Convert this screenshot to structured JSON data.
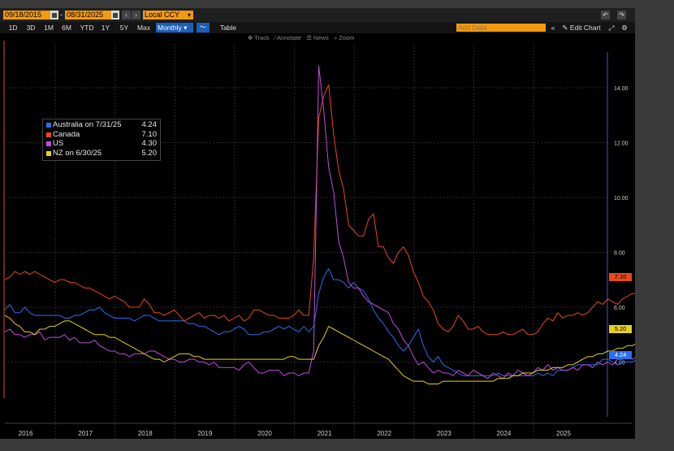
{
  "toolbar": {
    "start_date": "09/18/2015",
    "end_date": "08/31/2025",
    "date_separator": "-",
    "currency": "Local CCY",
    "periods": [
      "1D",
      "3D",
      "1M",
      "6M",
      "YTD",
      "1Y",
      "5Y",
      "Max"
    ],
    "frequency": "Monthly",
    "table_label": "Table",
    "add_data_placeholder": "Add Data",
    "edit_chart_label": "Edit Chart"
  },
  "subbar": {
    "track": "Track",
    "annotate": "Annotate",
    "news": "News",
    "zoom": "Zoom"
  },
  "colors": {
    "Australia": "#2a6ff0",
    "Canada": "#e8491d",
    "US": "#c04de0",
    "NZ": "#e6d21a",
    "orange_ui": "#f29a12"
  },
  "legend": [
    {
      "name": "Australia on 7/31/25",
      "value": "4.24"
    },
    {
      "name": "Canada",
      "value": "7.10"
    },
    {
      "name": "US",
      "value": "4.30"
    },
    {
      "name": "NZ on 6/30/25",
      "value": "5.20"
    }
  ],
  "last_value_tags": [
    "7.10",
    "5.20",
    "4.24"
  ],
  "chart_data": {
    "type": "line",
    "x_start": "2015-09",
    "x_step": "monthly",
    "xlim": [
      "2015-09",
      "2025-08"
    ],
    "x_ticks": [
      "2016",
      "2017",
      "2018",
      "2019",
      "2020",
      "2021",
      "2022",
      "2023",
      "2024",
      "2025"
    ],
    "y_ticks": [
      "4.00",
      "6.00",
      "8.00",
      "10.00",
      "12.00",
      "14.00"
    ],
    "ylim": [
      2.0,
      15.6
    ],
    "grid": true,
    "legend_position": "top-left",
    "series": [
      {
        "name": "Australia",
        "values": [
          5.9,
          6.1,
          5.8,
          5.8,
          6.0,
          5.8,
          5.7,
          5.7,
          5.7,
          5.7,
          5.7,
          5.7,
          5.6,
          5.6,
          5.7,
          5.7,
          5.8,
          5.9,
          5.9,
          6.0,
          5.8,
          5.7,
          5.6,
          5.6,
          5.6,
          5.6,
          5.5,
          5.6,
          5.7,
          5.7,
          5.6,
          5.5,
          5.5,
          5.5,
          5.5,
          5.5,
          5.5,
          5.4,
          5.4,
          5.3,
          5.3,
          5.2,
          5.1,
          5.0,
          5.1,
          5.1,
          5.2,
          5.3,
          5.2,
          5.0,
          5.0,
          5.0,
          5.1,
          5.1,
          5.2,
          5.3,
          5.2,
          5.3,
          5.2,
          5.1,
          5.3,
          5.1,
          5.3,
          6.5,
          7.1,
          7.4,
          7.0,
          7.0,
          6.9,
          6.7,
          6.9,
          6.7,
          6.6,
          6.3,
          5.9,
          5.6,
          5.4,
          5.1,
          4.9,
          4.6,
          4.4,
          4.6,
          4.9,
          5.2,
          4.6,
          4.2,
          4.0,
          4.2,
          3.9,
          3.8,
          3.7,
          3.6,
          3.5,
          3.5,
          3.5,
          3.5,
          3.5,
          3.5,
          3.5,
          3.6,
          3.5,
          3.5,
          3.5,
          3.5,
          3.5,
          3.5,
          3.5,
          3.6,
          3.5,
          3.6,
          3.5,
          3.7,
          3.7,
          3.7,
          3.8,
          3.9,
          3.9,
          3.9,
          3.9,
          3.9,
          4.1,
          4.1,
          4.0,
          3.9,
          4.0,
          4.0,
          4.0,
          4.1,
          4.2,
          4.2,
          4.1,
          4.0,
          4.1,
          4.2,
          4.3,
          4.4,
          4.2,
          4.3,
          4.2,
          4.2,
          4.1,
          4.0,
          4.1,
          4.3,
          4.1,
          4.2,
          4.24
        ]
      },
      {
        "name": "Canada",
        "values": [
          7.0,
          7.1,
          7.3,
          7.2,
          7.3,
          7.2,
          7.3,
          7.2,
          7.1,
          7.0,
          6.9,
          7.0,
          7.0,
          6.9,
          6.9,
          6.8,
          6.7,
          6.7,
          6.6,
          6.5,
          6.4,
          6.3,
          6.4,
          6.3,
          6.2,
          6.0,
          6.0,
          6.0,
          6.3,
          6.1,
          5.8,
          5.8,
          5.7,
          5.8,
          5.9,
          5.7,
          5.5,
          5.6,
          5.7,
          5.8,
          5.6,
          5.7,
          5.7,
          5.6,
          5.7,
          5.5,
          5.6,
          5.7,
          5.5,
          5.6,
          5.9,
          5.9,
          5.8,
          5.7,
          5.7,
          5.6,
          5.6,
          5.6,
          5.7,
          5.9,
          5.7,
          5.7,
          7.8,
          12.9,
          13.7,
          14.1,
          12.3,
          11.0,
          10.3,
          9.0,
          8.8,
          8.6,
          8.6,
          9.2,
          9.4,
          8.2,
          8.2,
          7.8,
          7.6,
          8.0,
          8.2,
          7.9,
          7.3,
          6.9,
          6.4,
          6.2,
          5.9,
          5.4,
          5.2,
          5.1,
          5.3,
          5.7,
          5.5,
          5.2,
          5.2,
          5.3,
          5.1,
          5.0,
          5.0,
          5.0,
          5.1,
          5.0,
          5.0,
          5.1,
          5.2,
          5.0,
          5.0,
          5.1,
          5.4,
          5.6,
          5.5,
          5.8,
          5.6,
          5.7,
          5.7,
          5.8,
          5.7,
          5.8,
          6.0,
          6.2,
          6.1,
          6.3,
          6.2,
          6.1,
          6.3,
          6.4,
          6.5,
          6.5,
          6.4,
          6.5,
          6.6,
          6.6,
          6.5,
          6.7,
          6.9,
          6.8,
          6.8,
          6.6,
          6.5,
          6.8,
          6.9,
          6.9,
          6.7,
          7.0,
          6.9,
          6.9,
          7.0,
          7.1
        ]
      },
      {
        "name": "US",
        "values": [
          5.1,
          5.2,
          5.0,
          5.0,
          4.9,
          5.0,
          5.0,
          5.1,
          4.8,
          4.9,
          4.9,
          4.9,
          5.0,
          4.8,
          4.9,
          4.7,
          4.7,
          4.7,
          4.8,
          4.6,
          4.5,
          4.4,
          4.4,
          4.3,
          4.3,
          4.2,
          4.3,
          4.3,
          4.3,
          4.4,
          4.4,
          4.3,
          4.2,
          4.1,
          4.1,
          4.0,
          4.0,
          4.1,
          4.1,
          4.0,
          4.0,
          3.9,
          4.0,
          3.8,
          3.8,
          3.8,
          3.8,
          3.7,
          3.9,
          4.0,
          3.8,
          3.6,
          3.6,
          3.7,
          3.7,
          3.7,
          3.5,
          3.6,
          3.6,
          3.5,
          3.6,
          3.6,
          4.4,
          14.8,
          13.2,
          11.1,
          10.2,
          8.4,
          7.8,
          6.9,
          6.7,
          6.7,
          6.4,
          6.2,
          6.1,
          6.0,
          5.9,
          5.8,
          5.4,
          5.2,
          4.8,
          4.6,
          4.2,
          3.9,
          4.0,
          3.8,
          3.6,
          3.7,
          3.6,
          3.6,
          3.5,
          3.7,
          3.6,
          3.5,
          3.7,
          3.6,
          3.5,
          3.4,
          3.6,
          3.5,
          3.4,
          3.6,
          3.5,
          3.7,
          3.6,
          3.5,
          3.6,
          3.8,
          3.7,
          3.9,
          3.7,
          3.8,
          3.7,
          3.7,
          3.8,
          3.7,
          3.9,
          3.9,
          3.8,
          4.0,
          3.9,
          4.0,
          3.9,
          4.1,
          4.1,
          4.2,
          4.1,
          4.2,
          4.0,
          4.1,
          4.2,
          4.1,
          4.2,
          4.3,
          4.1,
          4.0,
          4.1,
          4.2,
          4.0,
          4.1,
          4.1,
          4.2,
          4.1,
          4.1,
          4.2,
          4.1,
          4.2,
          4.3
        ]
      },
      {
        "name": "NZ",
        "values": [
          5.7,
          5.6,
          5.4,
          5.3,
          5.1,
          5.1,
          5.0,
          5.2,
          5.2,
          5.3,
          5.3,
          5.4,
          5.5,
          5.5,
          5.4,
          5.3,
          5.2,
          5.1,
          5.0,
          5.0,
          5.0,
          4.9,
          4.9,
          4.8,
          4.7,
          4.6,
          4.5,
          4.4,
          4.3,
          4.2,
          4.1,
          4.1,
          4.0,
          4.1,
          4.2,
          4.3,
          4.3,
          4.3,
          4.2,
          4.2,
          4.1,
          4.1,
          4.1,
          4.1,
          4.1,
          4.1,
          4.1,
          4.1,
          4.1,
          4.1,
          4.1,
          4.1,
          4.1,
          4.1,
          4.1,
          4.1,
          4.1,
          4.2,
          4.2,
          4.1,
          4.1,
          4.1,
          4.1,
          4.6,
          4.9,
          5.3,
          5.2,
          5.1,
          5.0,
          4.9,
          4.8,
          4.7,
          4.6,
          4.5,
          4.4,
          4.3,
          4.2,
          4.1,
          3.9,
          3.7,
          3.5,
          3.4,
          3.3,
          3.3,
          3.3,
          3.2,
          3.2,
          3.2,
          3.3,
          3.3,
          3.3,
          3.3,
          3.3,
          3.3,
          3.3,
          3.3,
          3.3,
          3.3,
          3.3,
          3.4,
          3.4,
          3.4,
          3.5,
          3.5,
          3.6,
          3.6,
          3.6,
          3.7,
          3.7,
          3.7,
          3.8,
          3.8,
          3.8,
          3.9,
          3.9,
          4.0,
          4.1,
          4.2,
          4.2,
          4.3,
          4.3,
          4.4,
          4.4,
          4.5,
          4.5,
          4.6,
          4.6,
          4.7,
          4.7,
          4.7,
          4.8,
          4.8,
          4.8,
          4.9,
          4.9,
          5.0,
          5.0,
          5.1,
          5.1,
          5.1,
          5.1,
          5.1,
          5.1,
          5.1,
          5.1,
          5.2,
          5.2,
          5.2
        ]
      }
    ]
  }
}
